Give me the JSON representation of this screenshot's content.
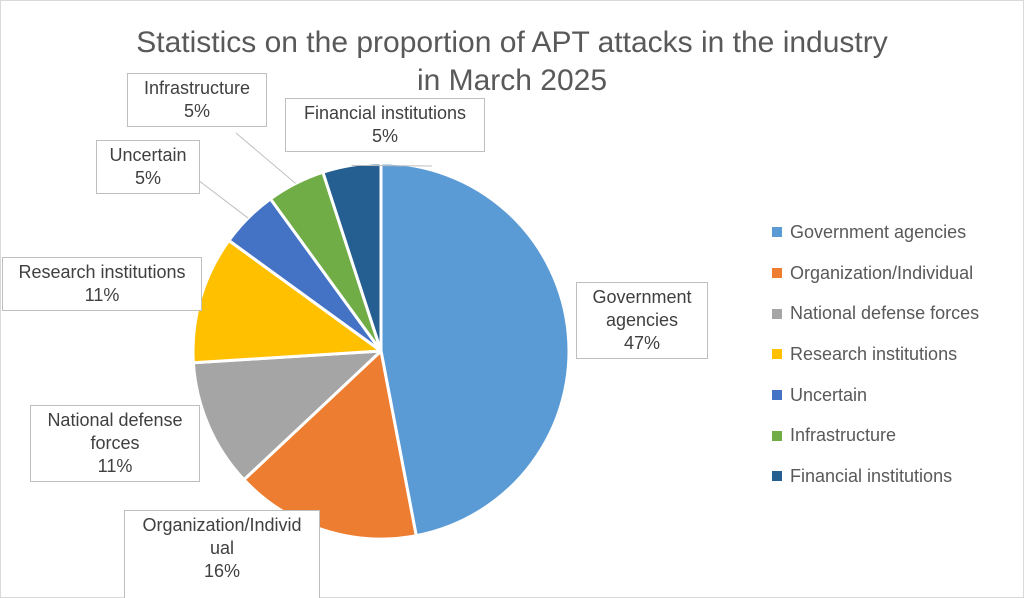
{
  "chart_data": {
    "type": "pie",
    "title": "Statistics on the proportion of APT attacks in the industry in March 2025",
    "title_lines": [
      "Statistics on the proportion of APT attacks in the industry",
      "in March 2025"
    ],
    "slices": [
      {
        "name": "Government agencies",
        "value": 47,
        "color": "#5B9BD5",
        "label_lines": [
          "Government",
          "agencies",
          "47%"
        ]
      },
      {
        "name": "Organization/Individual",
        "value": 16,
        "color": "#ED7D31",
        "label_lines": [
          "Organization/Individ",
          "ual",
          "16%"
        ]
      },
      {
        "name": "National defense forces",
        "value": 11,
        "color": "#A5A5A5",
        "label_lines": [
          "National defense",
          "forces",
          "11%"
        ]
      },
      {
        "name": "Research institutions",
        "value": 11,
        "color": "#FFC000",
        "label_lines": [
          "Research institutions",
          "11%"
        ]
      },
      {
        "name": "Uncertain",
        "value": 5,
        "color": "#4472C4",
        "label_lines": [
          "Uncertain",
          "5%"
        ]
      },
      {
        "name": "Infrastructure",
        "value": 5,
        "color": "#70AD47",
        "label_lines": [
          "Infrastructure",
          "5%"
        ]
      },
      {
        "name": "Financial institutions",
        "value": 5,
        "color": "#255E91",
        "label_lines": [
          "Financial institutions",
          "5%"
        ]
      }
    ],
    "legend_position": "right"
  }
}
